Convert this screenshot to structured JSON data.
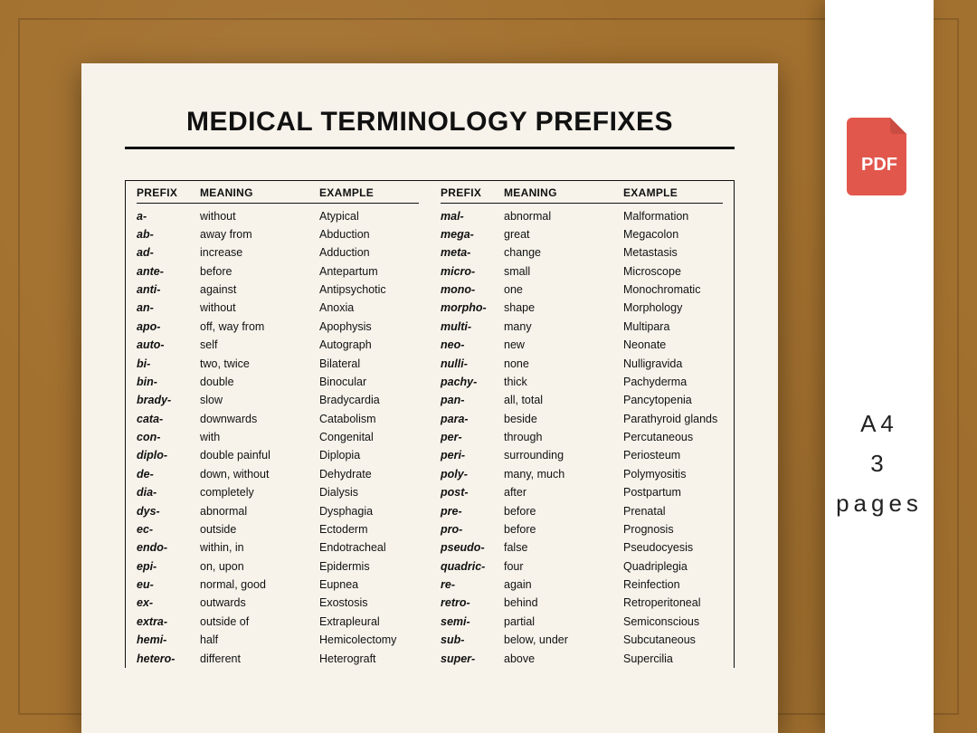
{
  "title": "MEDICAL TERMINOLOGY PREFIXES",
  "columns": [
    "PREFIX",
    "MEANING",
    "EXAMPLE"
  ],
  "left_rows": [
    {
      "prefix": "a-",
      "meaning": "without",
      "example": "Atypical"
    },
    {
      "prefix": "ab-",
      "meaning": "away from",
      "example": "Abduction"
    },
    {
      "prefix": "ad-",
      "meaning": "increase",
      "example": "Adduction"
    },
    {
      "prefix": "ante-",
      "meaning": "before",
      "example": "Antepartum"
    },
    {
      "prefix": "anti-",
      "meaning": "against",
      "example": "Antipsychotic"
    },
    {
      "prefix": "an-",
      "meaning": "without",
      "example": "Anoxia"
    },
    {
      "prefix": "apo-",
      "meaning": "off, way from",
      "example": "Apophysis"
    },
    {
      "prefix": "auto-",
      "meaning": "self",
      "example": "Autograph"
    },
    {
      "prefix": "bi-",
      "meaning": "two, twice",
      "example": "Bilateral"
    },
    {
      "prefix": "bin-",
      "meaning": "double",
      "example": "Binocular"
    },
    {
      "prefix": "brady-",
      "meaning": "slow",
      "example": "Bradycardia"
    },
    {
      "prefix": "cata-",
      "meaning": "downwards",
      "example": "Catabolism"
    },
    {
      "prefix": "con-",
      "meaning": "with",
      "example": "Congenital"
    },
    {
      "prefix": "diplo-",
      "meaning": "double painful",
      "example": "Diplopia"
    },
    {
      "prefix": "de-",
      "meaning": "down, without",
      "example": "Dehydrate"
    },
    {
      "prefix": "dia-",
      "meaning": "completely",
      "example": "Dialysis"
    },
    {
      "prefix": "dys-",
      "meaning": "abnormal",
      "example": "Dysphagia"
    },
    {
      "prefix": "ec-",
      "meaning": "outside",
      "example": "Ectoderm"
    },
    {
      "prefix": "endo-",
      "meaning": "within, in",
      "example": "Endotracheal"
    },
    {
      "prefix": "epi-",
      "meaning": "on, upon",
      "example": "Epidermis"
    },
    {
      "prefix": "eu-",
      "meaning": "normal, good",
      "example": "Eupnea"
    },
    {
      "prefix": "ex-",
      "meaning": "outwards",
      "example": "Exostosis"
    },
    {
      "prefix": "extra-",
      "meaning": "outside of",
      "example": "Extrapleural"
    },
    {
      "prefix": "hemi-",
      "meaning": "half",
      "example": "Hemicolectomy"
    },
    {
      "prefix": "hetero-",
      "meaning": "different",
      "example": "Heterograft"
    }
  ],
  "right_rows": [
    {
      "prefix": "mal-",
      "meaning": "abnormal",
      "example": "Malformation"
    },
    {
      "prefix": "mega-",
      "meaning": "great",
      "example": "Megacolon"
    },
    {
      "prefix": "meta-",
      "meaning": "change",
      "example": "Metastasis"
    },
    {
      "prefix": "micro-",
      "meaning": "small",
      "example": "Microscope"
    },
    {
      "prefix": "mono-",
      "meaning": "one",
      "example": "Monochromatic"
    },
    {
      "prefix": "morpho-",
      "meaning": "shape",
      "example": "Morphology"
    },
    {
      "prefix": "multi-",
      "meaning": "many",
      "example": "Multipara"
    },
    {
      "prefix": "neo-",
      "meaning": "new",
      "example": "Neonate"
    },
    {
      "prefix": "nulli-",
      "meaning": "none",
      "example": "Nulligravida"
    },
    {
      "prefix": "pachy-",
      "meaning": "thick",
      "example": "Pachyderma"
    },
    {
      "prefix": "pan-",
      "meaning": "all, total",
      "example": "Pancytopenia"
    },
    {
      "prefix": "para-",
      "meaning": "beside",
      "example": "Parathyroid glands"
    },
    {
      "prefix": "per-",
      "meaning": "through",
      "example": "Percutaneous"
    },
    {
      "prefix": "peri-",
      "meaning": "surrounding",
      "example": "Periosteum"
    },
    {
      "prefix": "poly-",
      "meaning": "many, much",
      "example": "Polymyositis"
    },
    {
      "prefix": "post-",
      "meaning": "after",
      "example": "Postpartum"
    },
    {
      "prefix": "pre-",
      "meaning": "before",
      "example": "Prenatal"
    },
    {
      "prefix": "pro-",
      "meaning": "before",
      "example": "Prognosis"
    },
    {
      "prefix": "pseudo-",
      "meaning": "false",
      "example": "Pseudocyesis"
    },
    {
      "prefix": "quadric-",
      "meaning": "four",
      "example": "Quadriplegia"
    },
    {
      "prefix": "re-",
      "meaning": "again",
      "example": "Reinfection"
    },
    {
      "prefix": "retro-",
      "meaning": "behind",
      "example": "Retroperitoneal"
    },
    {
      "prefix": "semi-",
      "meaning": "partial",
      "example": "Semiconscious"
    },
    {
      "prefix": "sub-",
      "meaning": "below, under",
      "example": "Subcutaneous"
    },
    {
      "prefix": "super-",
      "meaning": "above",
      "example": "Supercilia"
    }
  ],
  "sidebar": {
    "pdf_label": "PDF",
    "size": "A4",
    "pages": "3 pages"
  },
  "colors": {
    "bg": "#a3712f",
    "paper": "#f7f3eb",
    "text": "#111111",
    "pdf_red": "#e2574c",
    "pdf_fold": "#c94b41"
  }
}
